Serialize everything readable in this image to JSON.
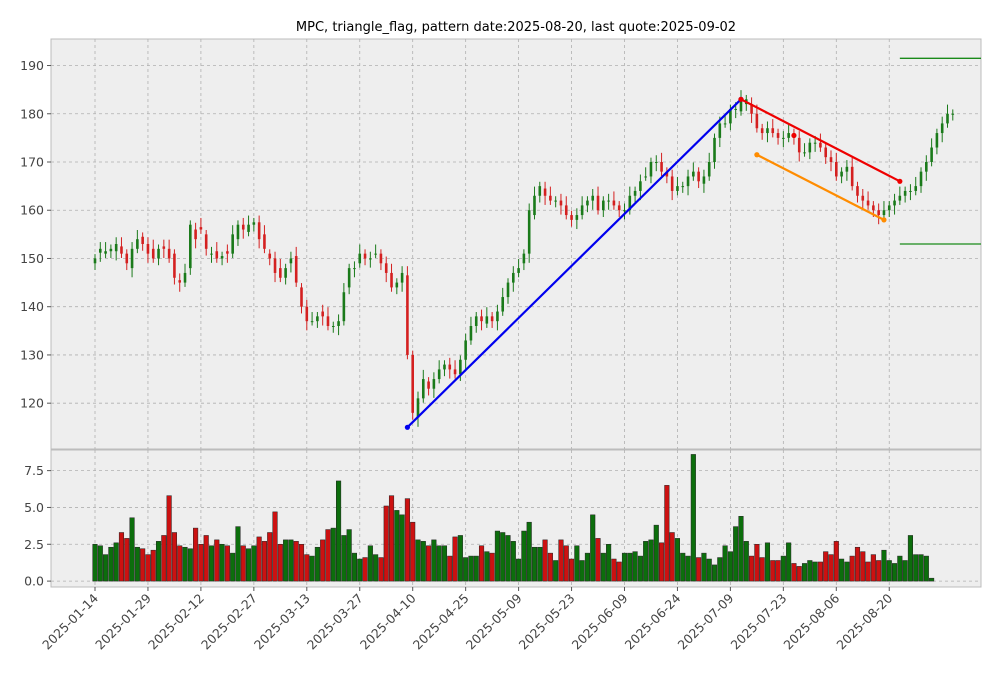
{
  "chart_data": {
    "type": "candlestick",
    "title": "MPC, triangle_flag, pattern date:2025-08-20, last quote:2025-09-02",
    "colors": {
      "up": "#1a7a1a",
      "down": "#d42020",
      "pattern_up": "#0000ee",
      "pattern_upper": "#ee0000",
      "pattern_lower": "#ff8c00",
      "target": "#1a8a1a",
      "volume_up": "#0c6e0c",
      "volume_down": "#cc1111"
    },
    "price_axis": {
      "ylim": [
        110.5,
        195.5
      ],
      "ticks": [
        120,
        130,
        140,
        150,
        160,
        170,
        180,
        190
      ]
    },
    "volume_axis": {
      "ylim": [
        -0.4,
        8.9
      ],
      "ticks": [
        0.0,
        2.5,
        5.0,
        7.5
      ],
      "tick_labels": [
        "0.0",
        "2.5",
        "5.0",
        "7.5"
      ]
    },
    "x_ticks": [
      "2025-01-14",
      "2025-01-29",
      "2025-02-12",
      "2025-02-27",
      "2025-03-13",
      "2025-03-27",
      "2025-04-10",
      "2025-04-25",
      "2025-05-09",
      "2025-05-23",
      "2025-06-09",
      "2025-06-24",
      "2025-07-09",
      "2025-07-23",
      "2025-08-06",
      "2025-08-20"
    ],
    "closes": [
      150,
      152,
      151.5,
      152,
      153,
      151,
      149,
      152,
      154,
      153,
      151,
      150,
      152,
      152,
      150,
      146,
      145,
      147,
      157,
      154,
      156,
      152,
      151,
      150,
      150.5,
      151,
      155,
      157,
      156,
      157,
      157.5,
      154,
      152,
      150,
      147,
      146,
      148,
      150,
      145,
      140,
      137,
      137,
      138,
      138,
      136,
      136,
      137,
      143,
      148,
      148,
      151,
      150,
      150,
      151,
      149,
      147,
      144,
      145,
      147,
      130,
      118,
      121,
      125,
      123,
      125,
      127,
      128,
      127,
      126,
      129,
      133,
      136,
      138,
      137,
      138,
      137,
      139,
      142,
      145,
      147,
      148,
      151,
      160,
      163,
      165,
      163,
      162,
      162,
      161,
      159,
      158,
      159,
      161,
      162,
      163,
      160,
      162,
      162,
      161,
      160,
      160,
      163,
      164,
      166,
      167,
      170,
      170,
      168,
      167,
      164,
      165,
      165,
      167,
      168,
      166,
      167,
      170,
      175,
      178,
      178,
      181,
      181,
      183,
      183,
      180,
      177,
      176,
      177,
      176,
      175,
      175,
      176,
      175,
      172,
      172,
      174,
      174,
      173,
      171,
      170,
      167,
      168,
      169,
      165,
      163,
      162,
      161,
      160,
      159,
      160,
      161,
      162,
      163,
      164,
      164,
      165,
      168,
      170,
      173,
      176,
      178,
      180,
      180
    ],
    "opens": [
      149,
      151.2,
      151,
      151.5,
      151.5,
      152.5,
      151,
      148,
      152,
      154.5,
      153,
      152,
      150,
      152.5,
      152,
      151,
      145.5,
      145,
      148,
      156,
      156.5,
      155,
      151,
      151.5,
      150,
      151.5,
      151,
      154,
      157,
      155.5,
      157,
      157.5,
      155,
      151,
      150,
      148,
      146,
      149,
      150.5,
      144,
      140,
      137,
      137,
      139,
      138,
      136,
      136,
      137,
      144,
      148,
      149,
      151,
      150,
      151,
      151,
      149,
      147,
      144,
      145,
      146.5,
      130,
      117,
      121,
      124.5,
      123,
      125,
      127,
      128,
      127,
      126,
      129,
      133,
      136,
      138,
      136.5,
      138,
      137,
      139,
      142,
      145,
      147,
      149,
      151,
      159,
      163,
      164.5,
      163,
      162,
      162,
      161,
      159,
      158,
      159,
      161,
      162,
      163,
      160,
      162,
      162,
      161,
      160,
      160,
      163,
      164,
      167,
      167,
      170,
      170,
      168,
      167,
      164,
      165,
      165,
      167,
      168,
      165.5,
      167,
      170,
      175,
      178,
      178,
      181,
      180.5,
      182,
      182,
      180,
      177,
      176,
      177,
      176,
      175,
      175,
      176,
      175,
      172,
      172,
      174,
      174,
      173,
      171,
      170,
      167,
      168,
      169,
      165,
      163,
      162,
      161,
      160,
      159,
      160,
      161,
      162,
      163,
      164,
      164,
      165,
      168,
      170,
      173,
      176,
      178,
      180
    ],
    "volumes": [
      2.5,
      2.4,
      1.8,
      2.3,
      2.6,
      3.3,
      2.9,
      4.3,
      2.3,
      2.2,
      1.8,
      2.1,
      2.7,
      3.1,
      5.8,
      3.3,
      2.4,
      2.3,
      2.2,
      3.6,
      2.5,
      3.1,
      2.4,
      2.8,
      2.5,
      2.4,
      1.9,
      3.7,
      2.4,
      2.2,
      2.4,
      3.0,
      2.7,
      3.3,
      4.7,
      2.5,
      2.8,
      2.8,
      2.7,
      2.5,
      1.8,
      1.7,
      2.3,
      2.8,
      3.5,
      3.6,
      6.8,
      3.1,
      3.5,
      1.9,
      1.5,
      1.6,
      2.4,
      1.8,
      1.6,
      5.1,
      5.8,
      4.8,
      4.5,
      5.6,
      4.0,
      2.8,
      2.7,
      2.4,
      2.8,
      2.4,
      2.4,
      1.7,
      3.0,
      3.1,
      1.6,
      1.7,
      1.7,
      2.4,
      2.0,
      1.9,
      3.4,
      3.3,
      3.1,
      2.7,
      1.5,
      3.4,
      4.0,
      2.3,
      2.3,
      2.8,
      1.9,
      1.4,
      2.8,
      2.4,
      1.5,
      2.4,
      1.4,
      1.9,
      4.5,
      2.9,
      1.9,
      2.5,
      1.5,
      1.3,
      1.9,
      1.9,
      2.0,
      1.7,
      2.7,
      2.8,
      3.8,
      2.6,
      6.5,
      3.3,
      2.9,
      1.9,
      1.7,
      8.6,
      1.6,
      1.9,
      1.5,
      1.1,
      1.6,
      2.4,
      2.0,
      3.7,
      4.4,
      2.7,
      1.7,
      2.5,
      1.6,
      2.6,
      1.4,
      1.4,
      1.7,
      2.6,
      1.2,
      1.0,
      1.2,
      1.4,
      1.3,
      1.3,
      2.0,
      1.8,
      2.7,
      1.5,
      1.3,
      1.7,
      2.3,
      2.0,
      1.3,
      1.8,
      1.4,
      2.1,
      1.4,
      1.2,
      1.7,
      1.4,
      3.1,
      1.8,
      1.8,
      1.7,
      0.2
    ],
    "pattern": {
      "pole": {
        "from": [
          59,
          115
        ],
        "to": [
          122,
          183
        ]
      },
      "upper": {
        "from": [
          122,
          183
        ],
        "mid": [
          132,
          175.5
        ],
        "to": [
          152,
          166
        ]
      },
      "lower": {
        "from": [
          125,
          171.5
        ],
        "to": [
          149,
          158
        ]
      },
      "target_upper": 191.5,
      "target_lower": 153
    }
  }
}
